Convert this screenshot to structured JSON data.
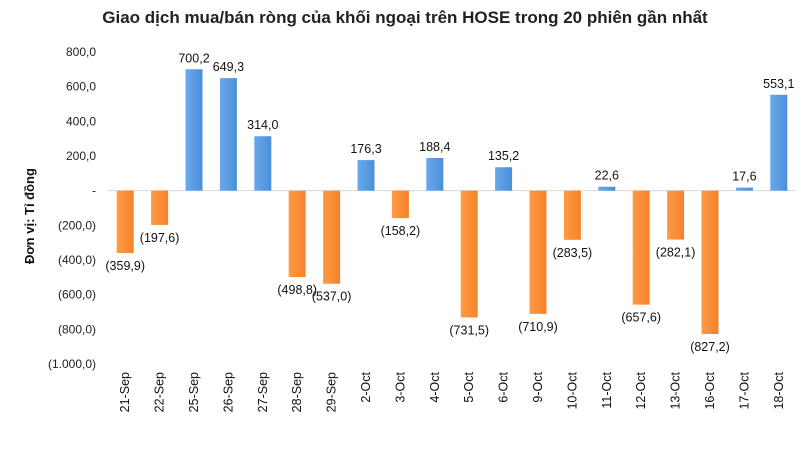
{
  "chart_data": {
    "type": "bar",
    "title": "Giao dịch mua/bán ròng của khối ngoại trên HOSE trong 20 phiên gần nhất",
    "ylabel": "Đơn vị: Tỉ đồng",
    "xlabel": "",
    "ylim": [
      -1000,
      800
    ],
    "yticks": [
      800,
      600,
      400,
      200,
      0,
      -200,
      -400,
      -600,
      -800,
      -1000
    ],
    "ytick_labels": [
      "800,0",
      "600,0",
      "400,0",
      "200,0",
      "-",
      "(200,0)",
      "(400,0)",
      "(600,0)",
      "(800,0)",
      "(1.000,0)"
    ],
    "categories": [
      "21-Sep",
      "22-Sep",
      "25-Sep",
      "26-Sep",
      "27-Sep",
      "28-Sep",
      "29-Sep",
      "2-Oct",
      "3-Oct",
      "4-Oct",
      "5-Oct",
      "6-Oct",
      "9-Oct",
      "10-Oct",
      "11-Oct",
      "12-Oct",
      "13-Oct",
      "16-Oct",
      "17-Oct",
      "18-Oct"
    ],
    "values": [
      -359.9,
      -197.6,
      700.2,
      649.3,
      314.0,
      -498.8,
      -537.0,
      176.3,
      -158.2,
      188.4,
      -731.5,
      135.2,
      -710.9,
      -283.5,
      22.6,
      -657.6,
      -282.1,
      -827.2,
      17.6,
      553.1
    ],
    "value_labels": [
      "(359,9)",
      "(197,6)",
      "700,2",
      "649,3",
      "314,0",
      "(498,8)",
      "(537,0)",
      "176,3",
      "(158,2)",
      "188,4",
      "(731,5)",
      "135,2",
      "(710,9)",
      "(283,5)",
      "22,6",
      "(657,6)",
      "(282,1)",
      "(827,2)",
      "17,6",
      "553,1"
    ],
    "colors": {
      "positive": "#4a8fd9",
      "negative": "#f5822a"
    },
    "grid": false,
    "legend": "none"
  }
}
